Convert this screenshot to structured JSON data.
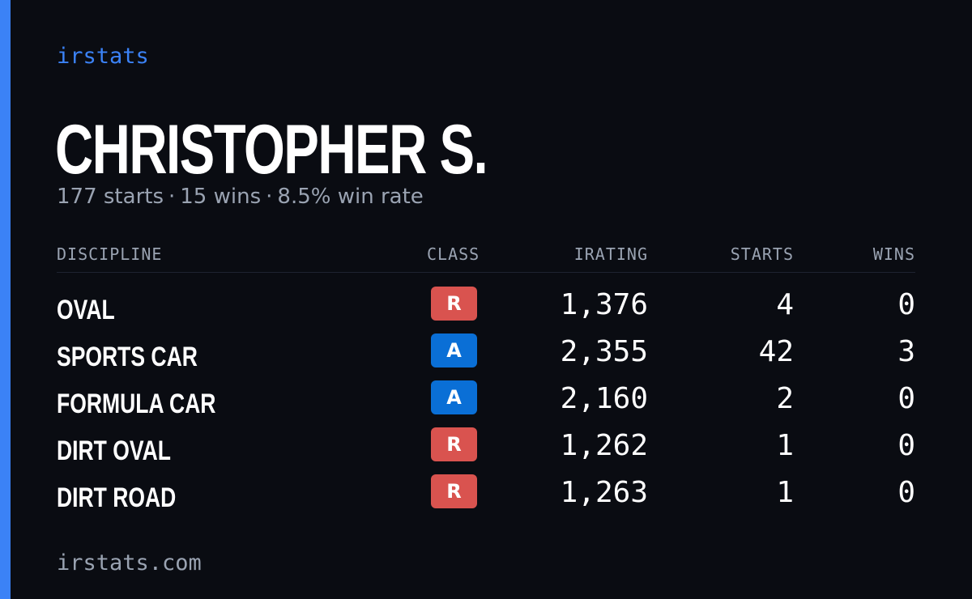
{
  "brand": "irstats",
  "driver": {
    "name": "CHRISTOPHER S.",
    "starts": "177 starts",
    "wins": "15 wins",
    "win_rate": "8.5% win rate",
    "separator": "·"
  },
  "columns": {
    "discipline": "DISCIPLINE",
    "class": "CLASS",
    "irating": "IRATING",
    "starts": "STARTS",
    "wins": "WINS"
  },
  "class_colors": {
    "R": "#d9534f",
    "A": "#0a6fd6"
  },
  "rows": [
    {
      "discipline": "OVAL",
      "class": "R",
      "irating": "1,376",
      "starts": "4",
      "wins": "0"
    },
    {
      "discipline": "SPORTS CAR",
      "class": "A",
      "irating": "2,355",
      "starts": "42",
      "wins": "3"
    },
    {
      "discipline": "FORMULA CAR",
      "class": "A",
      "irating": "2,160",
      "starts": "2",
      "wins": "0"
    },
    {
      "discipline": "DIRT OVAL",
      "class": "R",
      "irating": "1,262",
      "starts": "1",
      "wins": "0"
    },
    {
      "discipline": "DIRT ROAD",
      "class": "R",
      "irating": "1,263",
      "starts": "1",
      "wins": "0"
    }
  ],
  "footer": "irstats.com"
}
